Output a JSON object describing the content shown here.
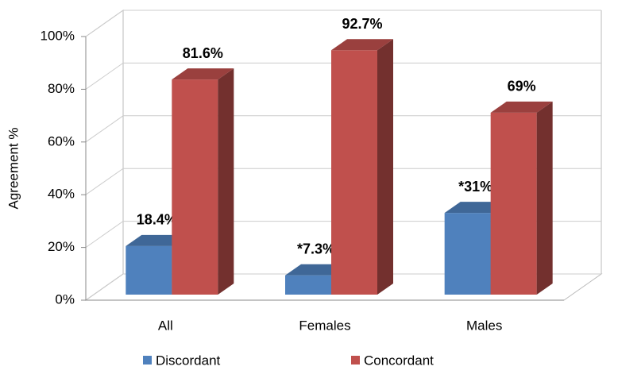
{
  "chart_data": {
    "type": "bar3d",
    "y_label": "Agreement %",
    "categories": [
      "All",
      "Females",
      "Males"
    ],
    "series": [
      {
        "name": "Discordant",
        "color": "#4f81bd",
        "values": [
          18.4,
          7.3,
          31
        ],
        "value_labels": [
          "18.4%",
          "*7.3%",
          "*31%"
        ]
      },
      {
        "name": "Concordant",
        "color": "#c0504d",
        "values": [
          81.6,
          92.7,
          69
        ],
        "value_labels": [
          "81.6%",
          "92.7%",
          "69%"
        ]
      }
    ],
    "ylim": [
      0,
      100
    ],
    "yticks": [
      {
        "value": 0,
        "label": "0%"
      },
      {
        "value": 20,
        "label": "20%"
      },
      {
        "value": 40,
        "label": "40%"
      },
      {
        "value": 60,
        "label": "60%"
      },
      {
        "value": 80,
        "label": "80%"
      },
      {
        "value": 100,
        "label": "100%"
      }
    ],
    "grid": true,
    "legend": "bottom"
  }
}
